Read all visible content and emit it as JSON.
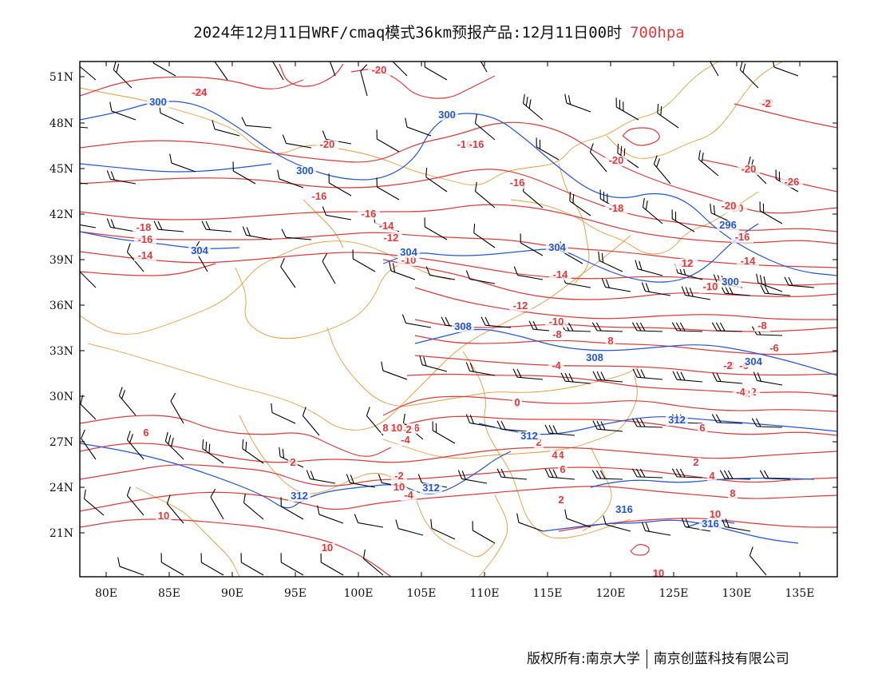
{
  "header": {
    "title": "2024年12月11日WRF/cmaq模式36km预报产品:12月11日00时",
    "level": "700hpa"
  },
  "footer": {
    "left": "版权所有:南京大学",
    "right": "南京创蓝科技有限公司"
  },
  "colors": {
    "temperature": "#e03a3a",
    "height": "#2255dd",
    "boundary": "#e89a3a",
    "wind": "#000000"
  },
  "map": {
    "lon_range": [
      78,
      138
    ],
    "lat_range": [
      18.5,
      52.5
    ],
    "x_ticks": [
      "80E",
      "85E",
      "90E",
      "95E",
      "100E",
      "105E",
      "110E",
      "115E",
      "120E",
      "125E",
      "130E",
      "135E"
    ],
    "y_ticks": [
      "51N",
      "48N",
      "45N",
      "42N",
      "39N",
      "36N",
      "33N",
      "30N",
      "27N",
      "24N",
      "21N"
    ],
    "temperature_labels": [
      "-20",
      "-24",
      "-20",
      "-16",
      "-16",
      "-22",
      "-20",
      "-26",
      "-16",
      "-16",
      "-14",
      "-20",
      "-12",
      "-10",
      "-18",
      "-18",
      "-16",
      "-14",
      "-14",
      "-12",
      "-10",
      "-12",
      "-10",
      "-8",
      "-8",
      "-6",
      "-6",
      "-4",
      "-2",
      "-6",
      "-4",
      "-2",
      "0",
      "2",
      "4",
      "6",
      "2",
      "2",
      "4",
      "6",
      "8",
      "10",
      "8",
      "10",
      "-2",
      "-4",
      "6",
      "2",
      "4",
      "8",
      "-2",
      "-2",
      "-24",
      "-16",
      "-14",
      "-20",
      "6",
      "-20",
      "0",
      "4",
      "2",
      "-2",
      "10",
      "12",
      "-10",
      "10",
      "-2",
      "-4",
      "-8",
      "10",
      "-8",
      "-16",
      "10"
    ],
    "height_labels": [
      "300",
      "300",
      "300",
      "304",
      "304",
      "304",
      "308",
      "308",
      "304",
      "312",
      "312",
      "312",
      "316",
      "316",
      "296",
      "300",
      "312"
    ]
  }
}
